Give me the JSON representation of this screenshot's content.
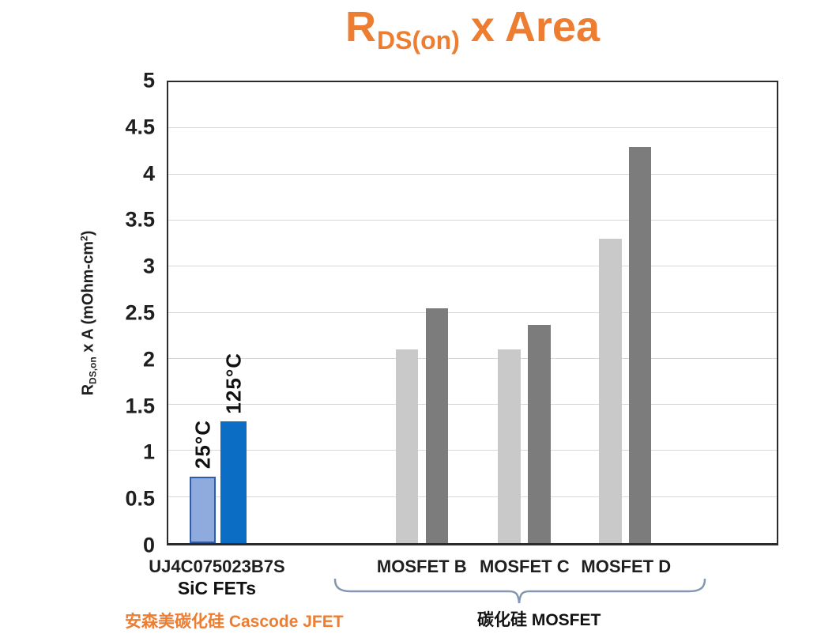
{
  "header": {
    "title_r": "R",
    "title_sub": "DS(on)",
    "title_rest": " x Area"
  },
  "ylabel_parts": {
    "r": "R",
    "sub": "DS,on",
    "mid": " x A (mOhm-cm",
    "sup": "2",
    "end": ")"
  },
  "annotations": {
    "left_orange": "安森美碳化硅 Cascode JFET",
    "right_black": "碳化硅 MOSFET"
  },
  "chart_data": {
    "type": "bar",
    "title": "R_DS(on) x Area",
    "xlabel": "",
    "ylabel": "R_DS,on x A (mOhm-cm^2)",
    "ylim": [
      0,
      5
    ],
    "ytick_step": 0.5,
    "grid": "horizontal",
    "legend_position": "none",
    "series_labels_rotated": [
      "25°C",
      "125°C"
    ],
    "groups": [
      {
        "label": "UJ4C075023B7S",
        "sublabel": "SiC FETs",
        "center_pct": 8.2,
        "bar_width_pct": 4.3,
        "bar_gap_pct": 0.8,
        "bars": [
          {
            "series": "25°C",
            "value": 0.72,
            "palette": "blue_light",
            "show_series_label": true
          },
          {
            "series": "125°C",
            "value": 1.32,
            "palette": "blue_dark",
            "show_series_label": true
          }
        ]
      },
      {
        "label": "MOSFET B",
        "center_pct": 41.7,
        "bar_width_pct": 3.7,
        "bar_gap_pct": 1.2,
        "bars": [
          {
            "series": "25°C",
            "value": 2.1,
            "palette": "gray_light"
          },
          {
            "series": "125°C",
            "value": 2.55,
            "palette": "gray_dark"
          }
        ]
      },
      {
        "label": "MOSFET C",
        "center_pct": 58.5,
        "bar_width_pct": 3.7,
        "bar_gap_pct": 1.2,
        "bars": [
          {
            "series": "25°C",
            "value": 2.1,
            "palette": "gray_light"
          },
          {
            "series": "125°C",
            "value": 2.37,
            "palette": "gray_dark"
          }
        ]
      },
      {
        "label": "MOSFET D",
        "center_pct": 75.1,
        "bar_width_pct": 3.7,
        "bar_gap_pct": 1.2,
        "bars": [
          {
            "series": "25°C",
            "value": 3.3,
            "palette": "gray_light"
          },
          {
            "series": "125°C",
            "value": 4.3,
            "palette": "gray_dark"
          }
        ]
      }
    ],
    "palette": {
      "blue_light": {
        "fill": "#8FAADC",
        "border": "#2F5CA8"
      },
      "blue_dark": {
        "fill": "#0C6DC4"
      },
      "gray_light": {
        "fill": "#C9C9C9"
      },
      "gray_dark": {
        "fill": "#7C7C7C"
      }
    },
    "colors": {
      "title_orange": "#ED7D31",
      "axis": "#2b2b2b",
      "gridline": "#d8d8d8",
      "brace": "#8497B0"
    }
  }
}
